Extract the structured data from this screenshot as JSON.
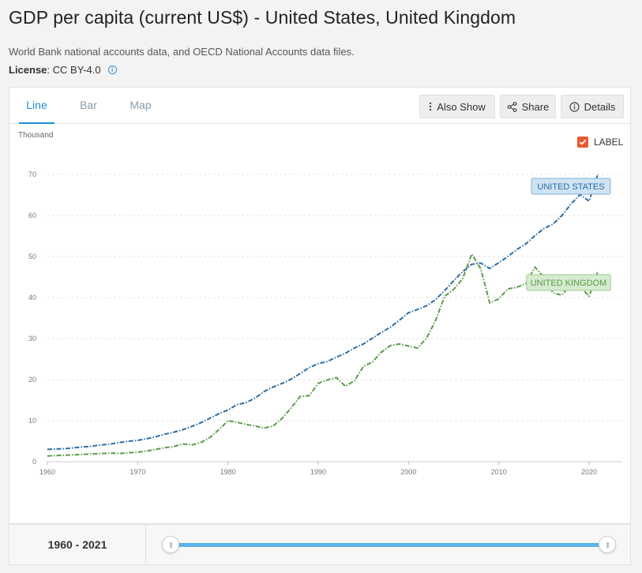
{
  "header": {
    "title": "GDP per capita (current US$) - United States, United Kingdom",
    "source": "World Bank national accounts data, and OECD National Accounts data files.",
    "license_key": "License",
    "license_value": " : CC BY-4.0"
  },
  "tabs": [
    {
      "label": "Line",
      "active": true
    },
    {
      "label": "Bar",
      "active": false
    },
    {
      "label": "Map",
      "active": false
    }
  ],
  "toolbar": {
    "also_show": "Also Show",
    "share": "Share",
    "details": "Details"
  },
  "chart_meta": {
    "unit_label": "Thousand",
    "label_toggle": "LABEL",
    "label_toggle_checked": true
  },
  "footer": {
    "range_label": "1960 - 2021",
    "range_start": 1960,
    "range_end": 2021
  },
  "chart_data": {
    "type": "line",
    "title": "GDP per capita (current US$) - United States, United Kingdom",
    "xlabel": "",
    "ylabel": "Thousand",
    "xlim": [
      1960,
      2021
    ],
    "ylim": [
      0,
      70
    ],
    "x_ticks": [
      1960,
      1970,
      1980,
      1990,
      2000,
      2010,
      2020
    ],
    "y_ticks": [
      0,
      10,
      20,
      30,
      40,
      50,
      60,
      70
    ],
    "grid": true,
    "x": [
      1960,
      1961,
      1962,
      1963,
      1964,
      1965,
      1966,
      1967,
      1968,
      1969,
      1970,
      1971,
      1972,
      1973,
      1974,
      1975,
      1976,
      1977,
      1978,
      1979,
      1980,
      1981,
      1982,
      1983,
      1984,
      1985,
      1986,
      1987,
      1988,
      1989,
      1990,
      1991,
      1992,
      1993,
      1994,
      1995,
      1996,
      1997,
      1998,
      1999,
      2000,
      2001,
      2002,
      2003,
      2004,
      2005,
      2006,
      2007,
      2008,
      2009,
      2010,
      2011,
      2012,
      2013,
      2014,
      2015,
      2016,
      2017,
      2018,
      2019,
      2020,
      2021
    ],
    "series": [
      {
        "name": "UNITED STATES",
        "color": "#2b6ea6",
        "label_bg": "#cfe3f3",
        "label_border": "#7fb0d6",
        "label_color": "#2b6ea6",
        "values": [
          3.0,
          3.1,
          3.2,
          3.4,
          3.6,
          3.8,
          4.1,
          4.3,
          4.7,
          5.0,
          5.2,
          5.6,
          6.1,
          6.7,
          7.2,
          7.8,
          8.6,
          9.5,
          10.6,
          11.7,
          12.6,
          13.9,
          14.4,
          15.5,
          17.1,
          18.2,
          19.1,
          20.1,
          21.5,
          22.9,
          23.9,
          24.4,
          25.5,
          26.4,
          27.7,
          28.7,
          30.1,
          31.5,
          32.8,
          34.5,
          36.3,
          37.1,
          38.0,
          39.5,
          41.7,
          44.1,
          46.3,
          48.1,
          48.4,
          47.1,
          48.5,
          50.0,
          51.7,
          53.1,
          55.1,
          56.8,
          57.9,
          60.0,
          62.8,
          65.1,
          63.5,
          70.2
        ]
      },
      {
        "name": "UNITED KINGDOM",
        "color": "#5b9b4a",
        "label_bg": "#d6ebd0",
        "label_border": "#9cca8f",
        "label_color": "#5b9b4a",
        "values": [
          1.4,
          1.5,
          1.6,
          1.7,
          1.8,
          1.9,
          2.0,
          2.1,
          2.0,
          2.2,
          2.3,
          2.6,
          3.0,
          3.4,
          3.7,
          4.3,
          4.1,
          4.7,
          5.9,
          7.8,
          10.0,
          9.6,
          9.1,
          8.7,
          8.2,
          8.7,
          10.6,
          13.1,
          15.9,
          16.1,
          19.1,
          19.9,
          20.5,
          18.4,
          19.7,
          23.2,
          24.3,
          26.7,
          28.3,
          28.7,
          28.2,
          27.7,
          30.1,
          34.4,
          40.3,
          42.0,
          44.6,
          50.6,
          47.0,
          38.7,
          39.7,
          42.1,
          42.5,
          43.4,
          47.4,
          45.0,
          41.1,
          40.6,
          43.3,
          42.7,
          40.3,
          46.5
        ]
      }
    ]
  }
}
